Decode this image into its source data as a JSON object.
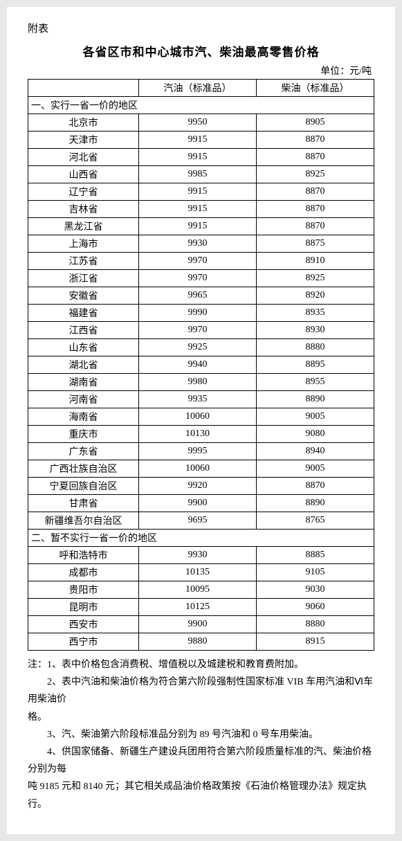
{
  "attach_label": "附表",
  "title": "各省区市和中心城市汽、柴油最高零售价格",
  "unit": "单位：元/吨",
  "columns": {
    "region": "",
    "gasoline": "汽油（标准品）",
    "diesel": "柴油（标准品）"
  },
  "section1": "一、实行一省一价的地区",
  "section2": "二、暂不实行一省一价的地区",
  "rows1": [
    {
      "r": "北京市",
      "g": "9950",
      "d": "8905"
    },
    {
      "r": "天津市",
      "g": "9915",
      "d": "8870"
    },
    {
      "r": "河北省",
      "g": "9915",
      "d": "8870"
    },
    {
      "r": "山西省",
      "g": "9985",
      "d": "8925"
    },
    {
      "r": "辽宁省",
      "g": "9915",
      "d": "8870"
    },
    {
      "r": "吉林省",
      "g": "9915",
      "d": "8870"
    },
    {
      "r": "黑龙江省",
      "g": "9915",
      "d": "8870"
    },
    {
      "r": "上海市",
      "g": "9930",
      "d": "8875"
    },
    {
      "r": "江苏省",
      "g": "9970",
      "d": "8910"
    },
    {
      "r": "浙江省",
      "g": "9970",
      "d": "8925"
    },
    {
      "r": "安徽省",
      "g": "9965",
      "d": "8920"
    },
    {
      "r": "福建省",
      "g": "9990",
      "d": "8935"
    },
    {
      "r": "江西省",
      "g": "9970",
      "d": "8930"
    },
    {
      "r": "山东省",
      "g": "9925",
      "d": "8880"
    },
    {
      "r": "湖北省",
      "g": "9940",
      "d": "8895"
    },
    {
      "r": "湖南省",
      "g": "9980",
      "d": "8955"
    },
    {
      "r": "河南省",
      "g": "9935",
      "d": "8890"
    },
    {
      "r": "海南省",
      "g": "10060",
      "d": "9005"
    },
    {
      "r": "重庆市",
      "g": "10130",
      "d": "9080"
    },
    {
      "r": "广东省",
      "g": "9995",
      "d": "8940"
    },
    {
      "r": "广西壮族自治区",
      "g": "10060",
      "d": "9005"
    },
    {
      "r": "宁夏回族自治区",
      "g": "9920",
      "d": "8870"
    },
    {
      "r": "甘肃省",
      "g": "9900",
      "d": "8890"
    },
    {
      "r": "新疆维吾尔自治区",
      "g": "9695",
      "d": "8765"
    }
  ],
  "rows2": [
    {
      "r": "呼和浩特市",
      "g": "9930",
      "d": "8885"
    },
    {
      "r": "成都市",
      "g": "10135",
      "d": "9105"
    },
    {
      "r": "贵阳市",
      "g": "10095",
      "d": "9030"
    },
    {
      "r": "昆明市",
      "g": "10125",
      "d": "9060"
    },
    {
      "r": "西安市",
      "g": "9900",
      "d": "8880"
    },
    {
      "r": "西宁市",
      "g": "9880",
      "d": "8915"
    }
  ],
  "notes": {
    "n1": "注：1、表中价格包含消费税、增值税以及城建税和教育费附加。",
    "n2a": "　　2、表中汽油和柴油价格为符合第六阶段强制性国家标准 VIB 车用汽油和Ⅵ车用柴油价",
    "n2b": "格。",
    "n3": "　　3、汽、柴油第六阶段标准品分别为 89 号汽油和 0 号车用柴油。",
    "n4a": "　　4、供国家储备、新疆生产建设兵团用符合第六阶段质量标准的汽、柴油价格分别为每",
    "n4b": "吨 9185 元和 8140 元；其它相关成品油价格政策按《石油价格管理办法》规定执行。"
  }
}
